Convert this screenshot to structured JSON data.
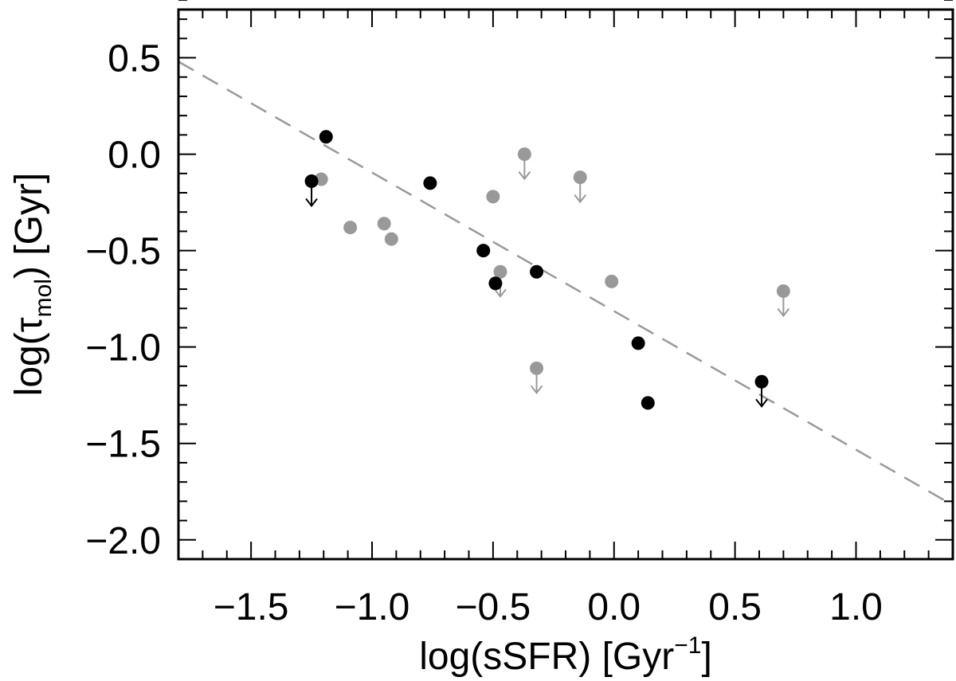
{
  "chart_data": {
    "type": "scatter",
    "title": "",
    "xlabel": {
      "base": "log(sSFR) [Gyr",
      "sup": "−1",
      "end": "]"
    },
    "ylabel": {
      "base": "log(τ",
      "sub": "mol",
      "end": ") [Gyr]"
    },
    "xlim": [
      -1.8,
      1.4
    ],
    "ylim": [
      -2.1,
      0.75
    ],
    "x_ticks": [
      -1.5,
      -1.0,
      -0.5,
      0.0,
      0.5,
      1.0
    ],
    "x_tick_labels": [
      "−1.5",
      "−1.0",
      "−0.5",
      "0.0",
      "0.5",
      "1.0"
    ],
    "y_ticks": [
      0.5,
      0.0,
      -0.5,
      -1.0,
      -1.5,
      -2.0
    ],
    "y_tick_labels": [
      "0.5",
      "0.0",
      "−0.5",
      "−1.0",
      "−1.5",
      "−2.0"
    ],
    "fit_line": {
      "style": "dashed",
      "color": "#999999",
      "x": [
        -1.8,
        1.4
      ],
      "y": [
        0.48,
        -1.82
      ]
    },
    "series": [
      {
        "name": "black",
        "color": "#000000",
        "points": [
          {
            "x": -1.19,
            "y": 0.09,
            "upper_limit": false
          },
          {
            "x": -1.25,
            "y": -0.14,
            "upper_limit": true
          },
          {
            "x": -0.76,
            "y": -0.15,
            "upper_limit": false
          },
          {
            "x": -0.54,
            "y": -0.5,
            "upper_limit": false
          },
          {
            "x": -0.49,
            "y": -0.67,
            "upper_limit": false
          },
          {
            "x": -0.32,
            "y": -0.61,
            "upper_limit": false
          },
          {
            "x": 0.1,
            "y": -0.98,
            "upper_limit": false
          },
          {
            "x": 0.14,
            "y": -1.29,
            "upper_limit": false
          },
          {
            "x": 0.61,
            "y": -1.18,
            "upper_limit": true
          }
        ]
      },
      {
        "name": "gray",
        "color": "#999999",
        "points": [
          {
            "x": -1.21,
            "y": -0.13,
            "upper_limit": false
          },
          {
            "x": -1.09,
            "y": -0.38,
            "upper_limit": false
          },
          {
            "x": -0.95,
            "y": -0.36,
            "upper_limit": false
          },
          {
            "x": -0.92,
            "y": -0.44,
            "upper_limit": false
          },
          {
            "x": -0.5,
            "y": -0.22,
            "upper_limit": false
          },
          {
            "x": -0.47,
            "y": -0.61,
            "upper_limit": true
          },
          {
            "x": -0.37,
            "y": 0.0,
            "upper_limit": true
          },
          {
            "x": -0.32,
            "y": -1.11,
            "upper_limit": true
          },
          {
            "x": -0.14,
            "y": -0.12,
            "upper_limit": true
          },
          {
            "x": -0.01,
            "y": -0.66,
            "upper_limit": false
          },
          {
            "x": 0.7,
            "y": -0.71,
            "upper_limit": true
          }
        ]
      }
    ]
  }
}
